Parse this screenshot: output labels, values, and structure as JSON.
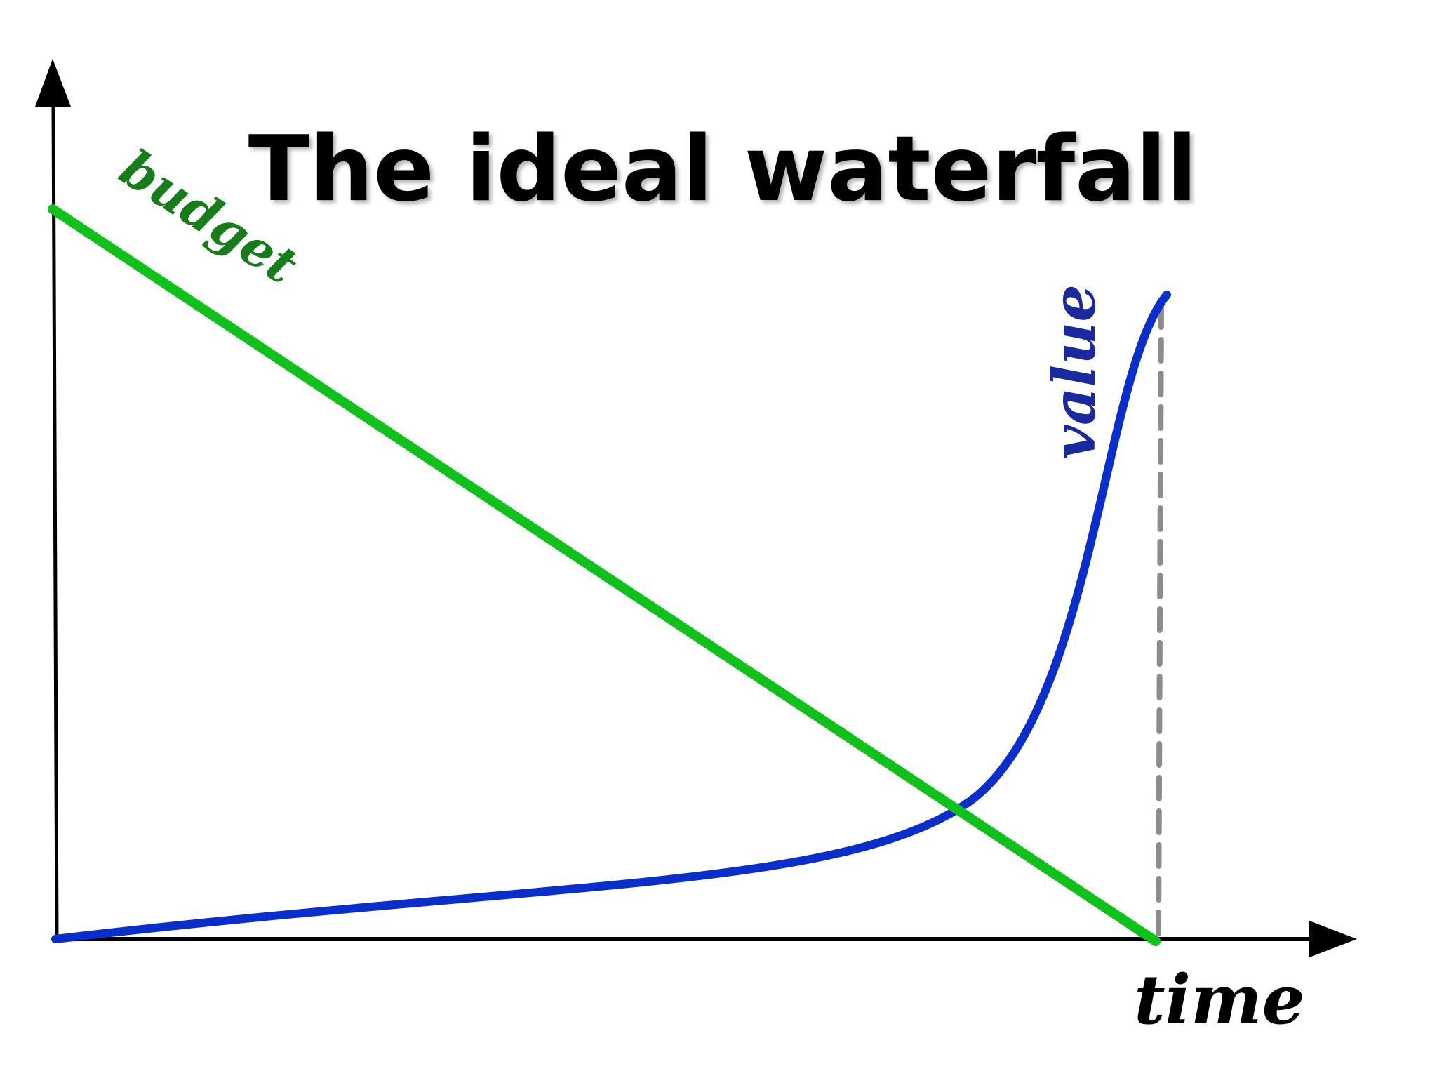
{
  "title": "The ideal waterfall",
  "labels": {
    "budget": "budget",
    "value": "value",
    "time": "time"
  }
}
